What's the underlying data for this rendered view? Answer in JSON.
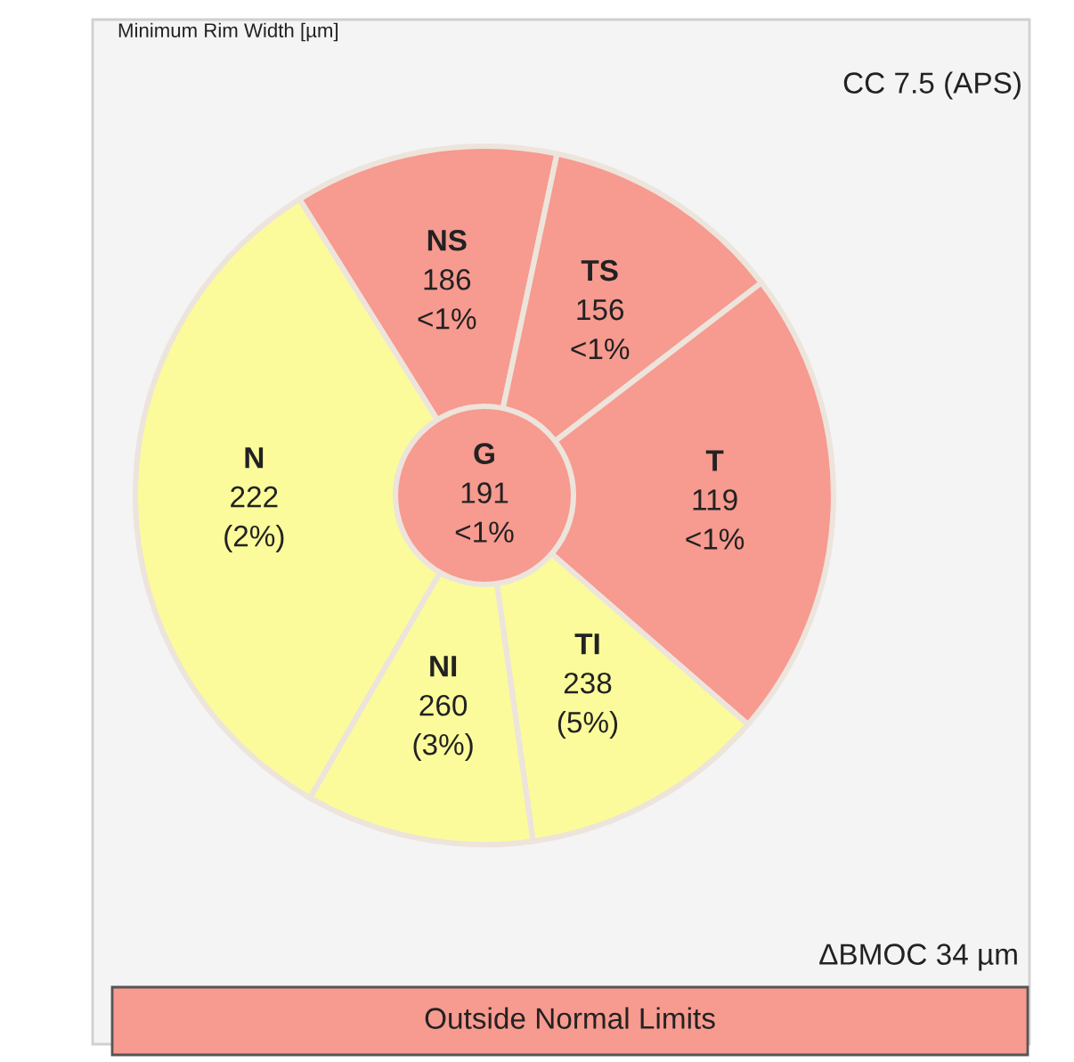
{
  "chart_data": {
    "type": "other",
    "title": "Minimum Rim Width [µm]",
    "subtitle": "CC 7.5 (APS)",
    "categories": [
      "NS",
      "TS",
      "T",
      "TI",
      "NI",
      "N",
      "G"
    ],
    "values": [
      186,
      156,
      119,
      238,
      260,
      222,
      191
    ],
    "data_labels": true,
    "colors": [
      "#f79a8f",
      "#f79a8f",
      "#f79a8f",
      "#fbfb9b",
      "#fbfb9b",
      "#fbfb9b",
      "#f79a8f"
    ],
    "annotations": [
      "ΔBMOC 34 µm",
      "Outside Normal Limits",
      "<1%",
      "<1%",
      "<1%",
      "(5%)",
      "(3%)",
      "(2%)",
      "<1%"
    ]
  }
}
